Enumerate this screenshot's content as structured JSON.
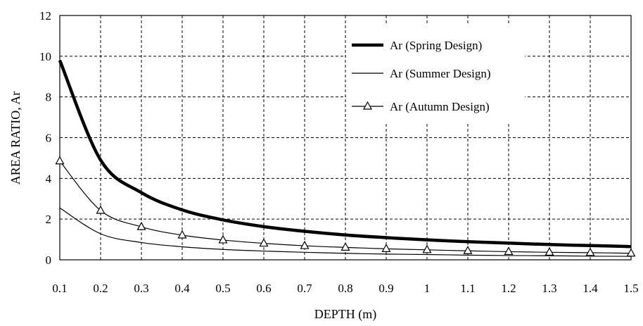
{
  "chart_data": {
    "type": "line",
    "xlabel": "DEPTH (m)",
    "ylabel": "AREA RATIO, Ar",
    "xlim": [
      0.1,
      1.5
    ],
    "ylim": [
      0,
      12
    ],
    "x_ticks": [
      "0.1",
      "0.2",
      "0.3",
      "0.4",
      "0.5",
      "0.6",
      "0.7",
      "0.8",
      "0.9",
      "1",
      "1.1",
      "1.2",
      "1.3",
      "1.4",
      "1.5"
    ],
    "y_ticks": [
      "0",
      "2",
      "4",
      "6",
      "8",
      "10",
      "12"
    ],
    "grid": true,
    "legend_position": "top-right",
    "x": [
      0.1,
      0.2,
      0.3,
      0.4,
      0.5,
      0.6,
      0.7,
      0.8,
      0.9,
      1.0,
      1.1,
      1.2,
      1.3,
      1.4,
      1.5
    ],
    "series": [
      {
        "name": "Ar (Spring Design)",
        "style": "thick",
        "color": "#000000",
        "values": [
          9.8,
          4.9,
          3.3,
          2.45,
          1.96,
          1.63,
          1.4,
          1.22,
          1.09,
          0.98,
          0.89,
          0.82,
          0.75,
          0.7,
          0.65
        ]
      },
      {
        "name": "Ar (Summer Design)",
        "style": "thin",
        "color": "#000000",
        "values": [
          2.55,
          1.28,
          0.85,
          0.64,
          0.51,
          0.43,
          0.37,
          0.32,
          0.28,
          0.26,
          0.23,
          0.21,
          0.2,
          0.18,
          0.17
        ]
      },
      {
        "name": "Ar (Autumn Design)",
        "style": "triangle",
        "color": "#000000",
        "values": [
          4.85,
          2.42,
          1.62,
          1.21,
          0.97,
          0.81,
          0.69,
          0.61,
          0.54,
          0.49,
          0.44,
          0.4,
          0.37,
          0.35,
          0.32
        ]
      }
    ]
  }
}
